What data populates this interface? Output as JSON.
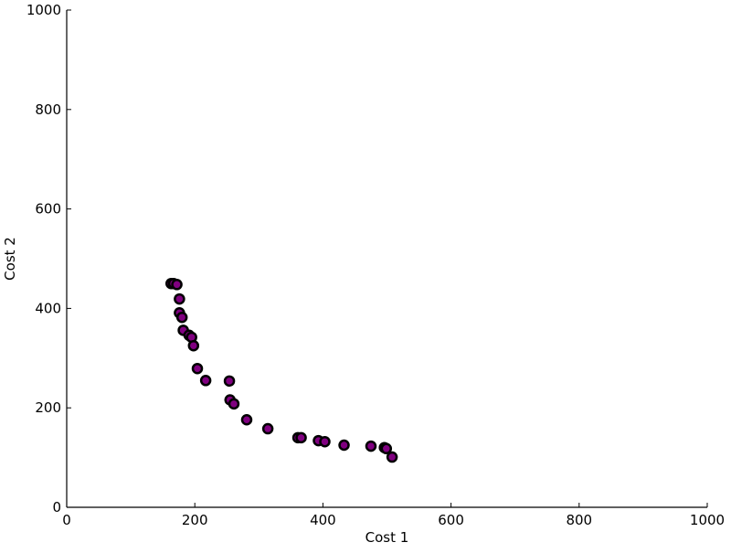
{
  "chart_data": {
    "type": "scatter",
    "title": "",
    "xlabel": "Cost 1",
    "ylabel": "Cost 2",
    "xlim": [
      0,
      1000
    ],
    "ylim": [
      0,
      1000
    ],
    "xticks": [
      0,
      200,
      400,
      600,
      800,
      1000
    ],
    "yticks": [
      0,
      200,
      400,
      600,
      800,
      1000
    ],
    "xtick_labels": [
      "0",
      "200",
      "400",
      "600",
      "800",
      "1000"
    ],
    "ytick_labels": [
      "0",
      "200",
      "400",
      "600",
      "800",
      "1000"
    ],
    "grid": false,
    "legend": "none",
    "marker_face_color": "#800080",
    "marker_edge_color": "#000000",
    "series": [
      {
        "points": [
          {
            "x": 163,
            "y": 450
          },
          {
            "x": 167,
            "y": 450
          },
          {
            "x": 172,
            "y": 448
          },
          {
            "x": 176,
            "y": 419
          },
          {
            "x": 176,
            "y": 391
          },
          {
            "x": 180,
            "y": 382
          },
          {
            "x": 182,
            "y": 356
          },
          {
            "x": 191,
            "y": 346
          },
          {
            "x": 195,
            "y": 342
          },
          {
            "x": 198,
            "y": 325
          },
          {
            "x": 204,
            "y": 279
          },
          {
            "x": 217,
            "y": 255
          },
          {
            "x": 254,
            "y": 254
          },
          {
            "x": 255,
            "y": 216
          },
          {
            "x": 261,
            "y": 208
          },
          {
            "x": 281,
            "y": 176
          },
          {
            "x": 314,
            "y": 158
          },
          {
            "x": 361,
            "y": 140
          },
          {
            "x": 366,
            "y": 140
          },
          {
            "x": 393,
            "y": 134
          },
          {
            "x": 403,
            "y": 132
          },
          {
            "x": 433,
            "y": 125
          },
          {
            "x": 475,
            "y": 123
          },
          {
            "x": 496,
            "y": 120
          },
          {
            "x": 499,
            "y": 118
          },
          {
            "x": 508,
            "y": 101
          }
        ]
      }
    ]
  }
}
